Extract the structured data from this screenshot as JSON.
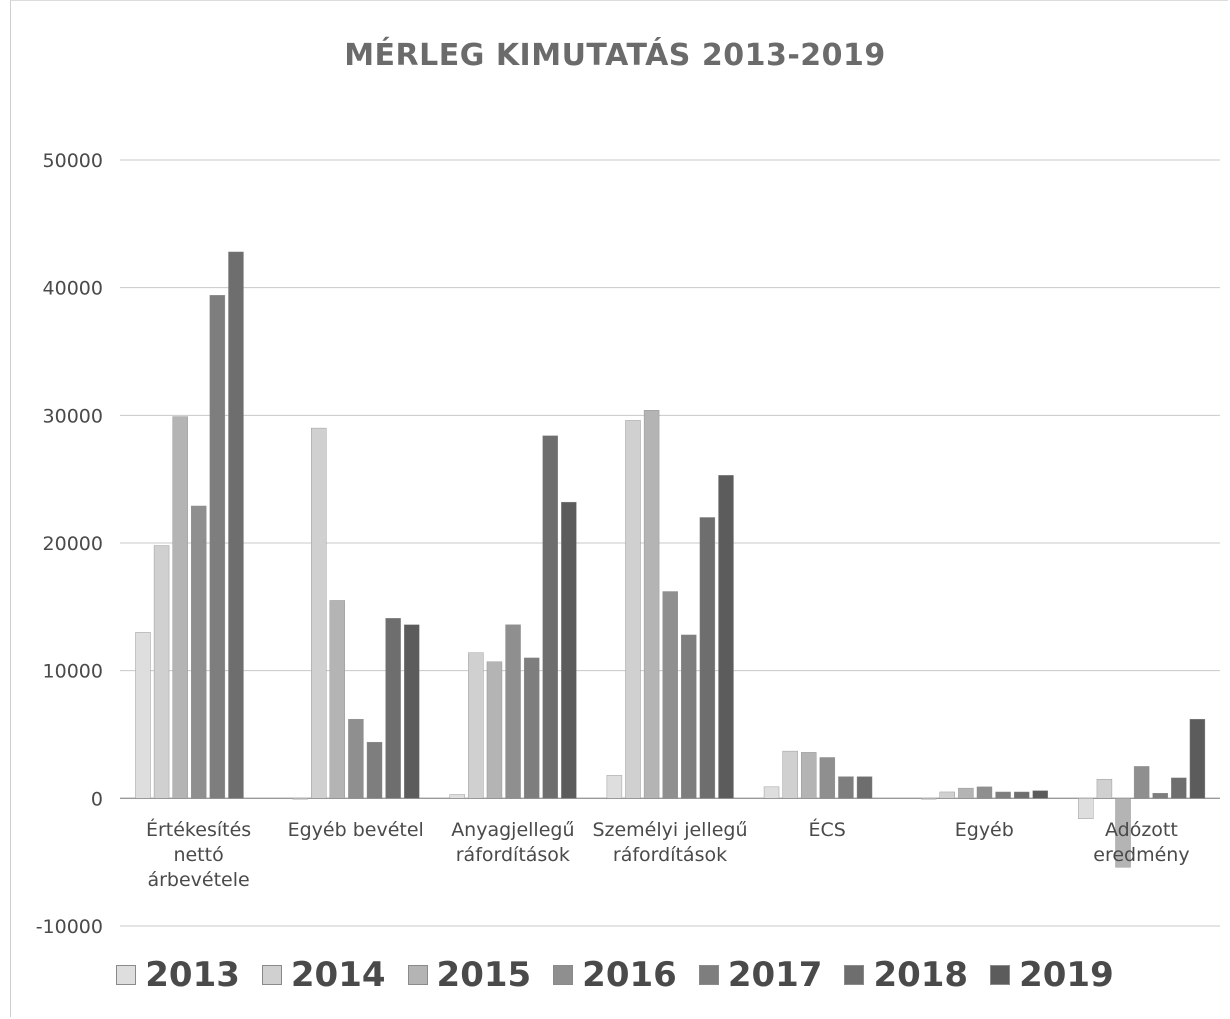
{
  "chart_data": {
    "type": "bar",
    "title": "MÉRLEG KIMUTATÁS 2013-2019",
    "xlabel": "",
    "ylabel": "",
    "ylim": [
      -10000,
      50000
    ],
    "yticks": [
      -10000,
      0,
      10000,
      20000,
      30000,
      40000,
      50000
    ],
    "grid": true,
    "legend_position": "bottom",
    "categories": [
      [
        "Értékesítés",
        "nettó",
        "árbevétele"
      ],
      [
        "Egyéb bevétel"
      ],
      [
        "Anyagjellegű",
        "ráfordítások"
      ],
      [
        "Személyi jellegű",
        "ráfordítások"
      ],
      [
        "ÉCS"
      ],
      [
        "Egyéb"
      ],
      [
        "Adózott",
        "eredmény"
      ]
    ],
    "series": [
      {
        "name": "2013",
        "color": "#dedede",
        "values": [
          13000,
          0,
          300,
          1800,
          900,
          0,
          -1600
        ]
      },
      {
        "name": "2014",
        "color": "#d0d0d0",
        "values": [
          19800,
          29000,
          11400,
          29600,
          3700,
          500,
          1500
        ]
      },
      {
        "name": "2015",
        "color": "#b4b4b4",
        "values": [
          29900,
          15500,
          10700,
          30400,
          3600,
          800,
          -5400
        ]
      },
      {
        "name": "2016",
        "color": "#8f8f8f",
        "values": [
          22900,
          6200,
          13600,
          16200,
          3200,
          900,
          2500
        ]
      },
      {
        "name": "2017",
        "color": "#7e7e7e",
        "values": [
          39400,
          4400,
          11000,
          12800,
          1700,
          500,
          400
        ]
      },
      {
        "name": "2018",
        "color": "#6e6e6e",
        "values": [
          42800,
          14100,
          28400,
          22000,
          1700,
          500,
          1600
        ]
      },
      {
        "name": "2019",
        "color": "#5c5c5c",
        "values": [
          null,
          13600,
          23200,
          25300,
          null,
          600,
          6200
        ]
      }
    ]
  }
}
